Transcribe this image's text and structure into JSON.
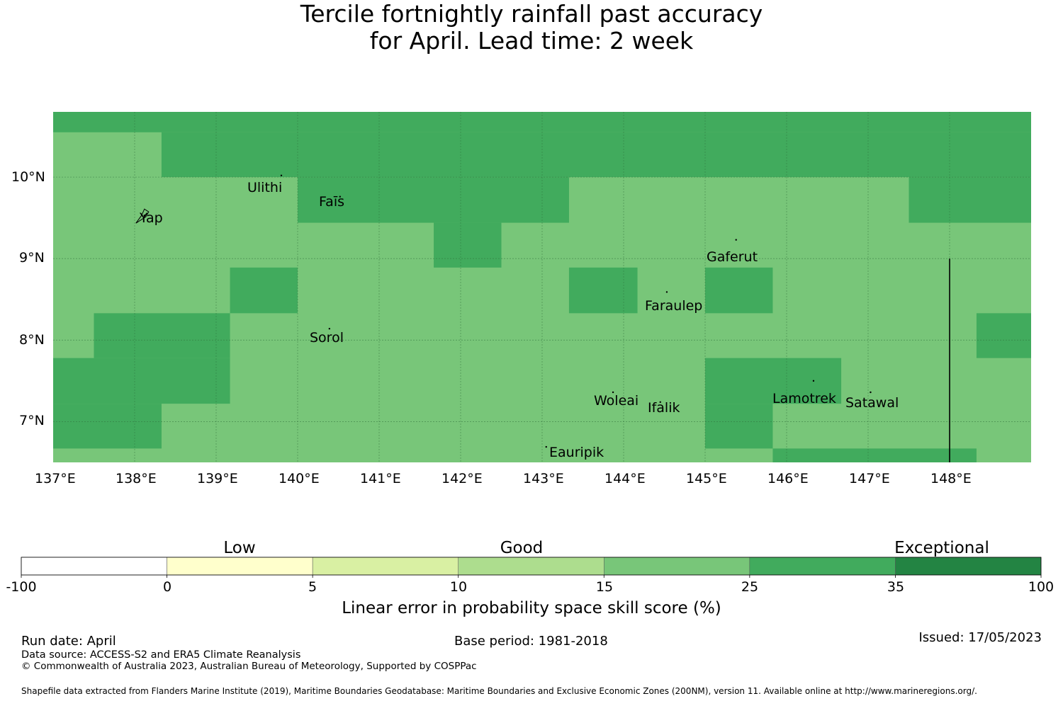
{
  "title": {
    "line1": "Tercile fortnightly rainfall past accuracy",
    "line2": "for April. Lead time: 2 week"
  },
  "map": {
    "lon_range": [
      137,
      149
    ],
    "lat_range": [
      6.5,
      10.8
    ],
    "lon_ticks": [
      "137°E",
      "138°E",
      "139°E",
      "140°E",
      "141°E",
      "142°E",
      "143°E",
      "144°E",
      "145°E",
      "146°E",
      "147°E",
      "148°E"
    ],
    "lat_ticks": [
      "10°N",
      "9°N",
      "8°N",
      "7°N"
    ],
    "colors": {
      "class_15_25": "#78c679",
      "class_25_35": "#41ab5d",
      "grid_line": "#2f6e3a"
    },
    "class_25_35_regions": [
      {
        "lon": [
          137.0,
          149.0
        ],
        "lat": [
          10.55,
          10.8
        ]
      },
      {
        "lon": [
          138.33,
          149.0
        ],
        "lat": [
          10.0,
          10.55
        ]
      },
      {
        "lon": [
          140.0,
          143.33
        ],
        "lat": [
          9.44,
          10.0
        ]
      },
      {
        "lon": [
          141.67,
          142.5
        ],
        "lat": [
          8.89,
          9.44
        ]
      },
      {
        "lon": [
          147.5,
          149.0
        ],
        "lat": [
          9.44,
          10.0
        ]
      },
      {
        "lon": [
          139.17,
          140.0
        ],
        "lat": [
          8.33,
          8.89
        ]
      },
      {
        "lon": [
          143.33,
          144.17
        ],
        "lat": [
          8.33,
          8.89
        ]
      },
      {
        "lon": [
          145.0,
          145.83
        ],
        "lat": [
          8.33,
          8.89
        ]
      },
      {
        "lon": [
          137.5,
          139.17
        ],
        "lat": [
          7.78,
          8.33
        ]
      },
      {
        "lon": [
          148.33,
          149.0
        ],
        "lat": [
          7.78,
          8.33
        ]
      },
      {
        "lon": [
          137.0,
          139.17
        ],
        "lat": [
          7.22,
          7.78
        ]
      },
      {
        "lon": [
          145.0,
          146.67
        ],
        "lat": [
          7.22,
          7.78
        ]
      },
      {
        "lon": [
          137.0,
          138.33
        ],
        "lat": [
          6.67,
          7.22
        ]
      },
      {
        "lon": [
          145.0,
          145.83
        ],
        "lat": [
          6.67,
          7.22
        ]
      },
      {
        "lon": [
          145.83,
          148.33
        ],
        "lat": [
          6.5,
          6.67
        ]
      }
    ],
    "boundary_line": {
      "lon": 148.0,
      "lat": [
        6.5,
        9.0
      ]
    },
    "islands": [
      {
        "name": "Yap",
        "lon": 138.12,
        "lat": 9.53
      },
      {
        "name": "Ulithi",
        "lon": 139.8,
        "lat": 10.02
      },
      {
        "name": "Fais",
        "lon": 140.52,
        "lat": 9.76
      },
      {
        "name": "Sorol",
        "lon": 140.39,
        "lat": 8.14
      },
      {
        "name": "Gaferut",
        "lon": 145.38,
        "lat": 9.23
      },
      {
        "name": "Faraulep",
        "lon": 144.53,
        "lat": 8.59
      },
      {
        "name": "Woleai",
        "lon": 143.87,
        "lat": 7.36
      },
      {
        "name": "Ifalik",
        "lon": 144.45,
        "lat": 7.24
      },
      {
        "name": "Lamotrek",
        "lon": 146.33,
        "lat": 7.5
      },
      {
        "name": "Satawal",
        "lon": 147.03,
        "lat": 7.36
      },
      {
        "name": "Eauripik",
        "lon": 143.05,
        "lat": 6.69
      }
    ],
    "island_labels": [
      "Yap",
      "Ulithi",
      "Faīs",
      "Sorol",
      "Gaferut",
      "Faraulep",
      "Woleai",
      "Ifalik",
      "Lamotrek",
      "Satawal",
      "Eauripik"
    ]
  },
  "colorbar": {
    "categories": [
      "Low",
      "Good",
      "Exceptional"
    ],
    "boundaries": [
      "-100",
      "0",
      "5",
      "10",
      "15",
      "25",
      "35",
      "100"
    ],
    "colors": [
      "#ffffff",
      "#ffffcc",
      "#d9f0a3",
      "#addd8e",
      "#78c679",
      "#41ab5d",
      "#238443"
    ],
    "title": "Linear error in probability space skill score (%)"
  },
  "footer": {
    "run_date": "Run date: April",
    "base_period": "Base period: 1981-2018",
    "issued": "Issued: 17/05/2023",
    "data_source": "Data source: ACCESS-S2 and ERA5 Climate Reanalysis",
    "copyright": "© Commonwealth of Australia 2023, Australian Bureau of Meteorology, Supported by COSPPac",
    "shapefile": "Shapefile data extracted from Flanders Marine Institute (2019), Maritime Boundaries Geodatabase: Maritime Boundaries and Exclusive Economic Zones (200NM), version 11. Available online at http://www.marineregions.org/."
  }
}
